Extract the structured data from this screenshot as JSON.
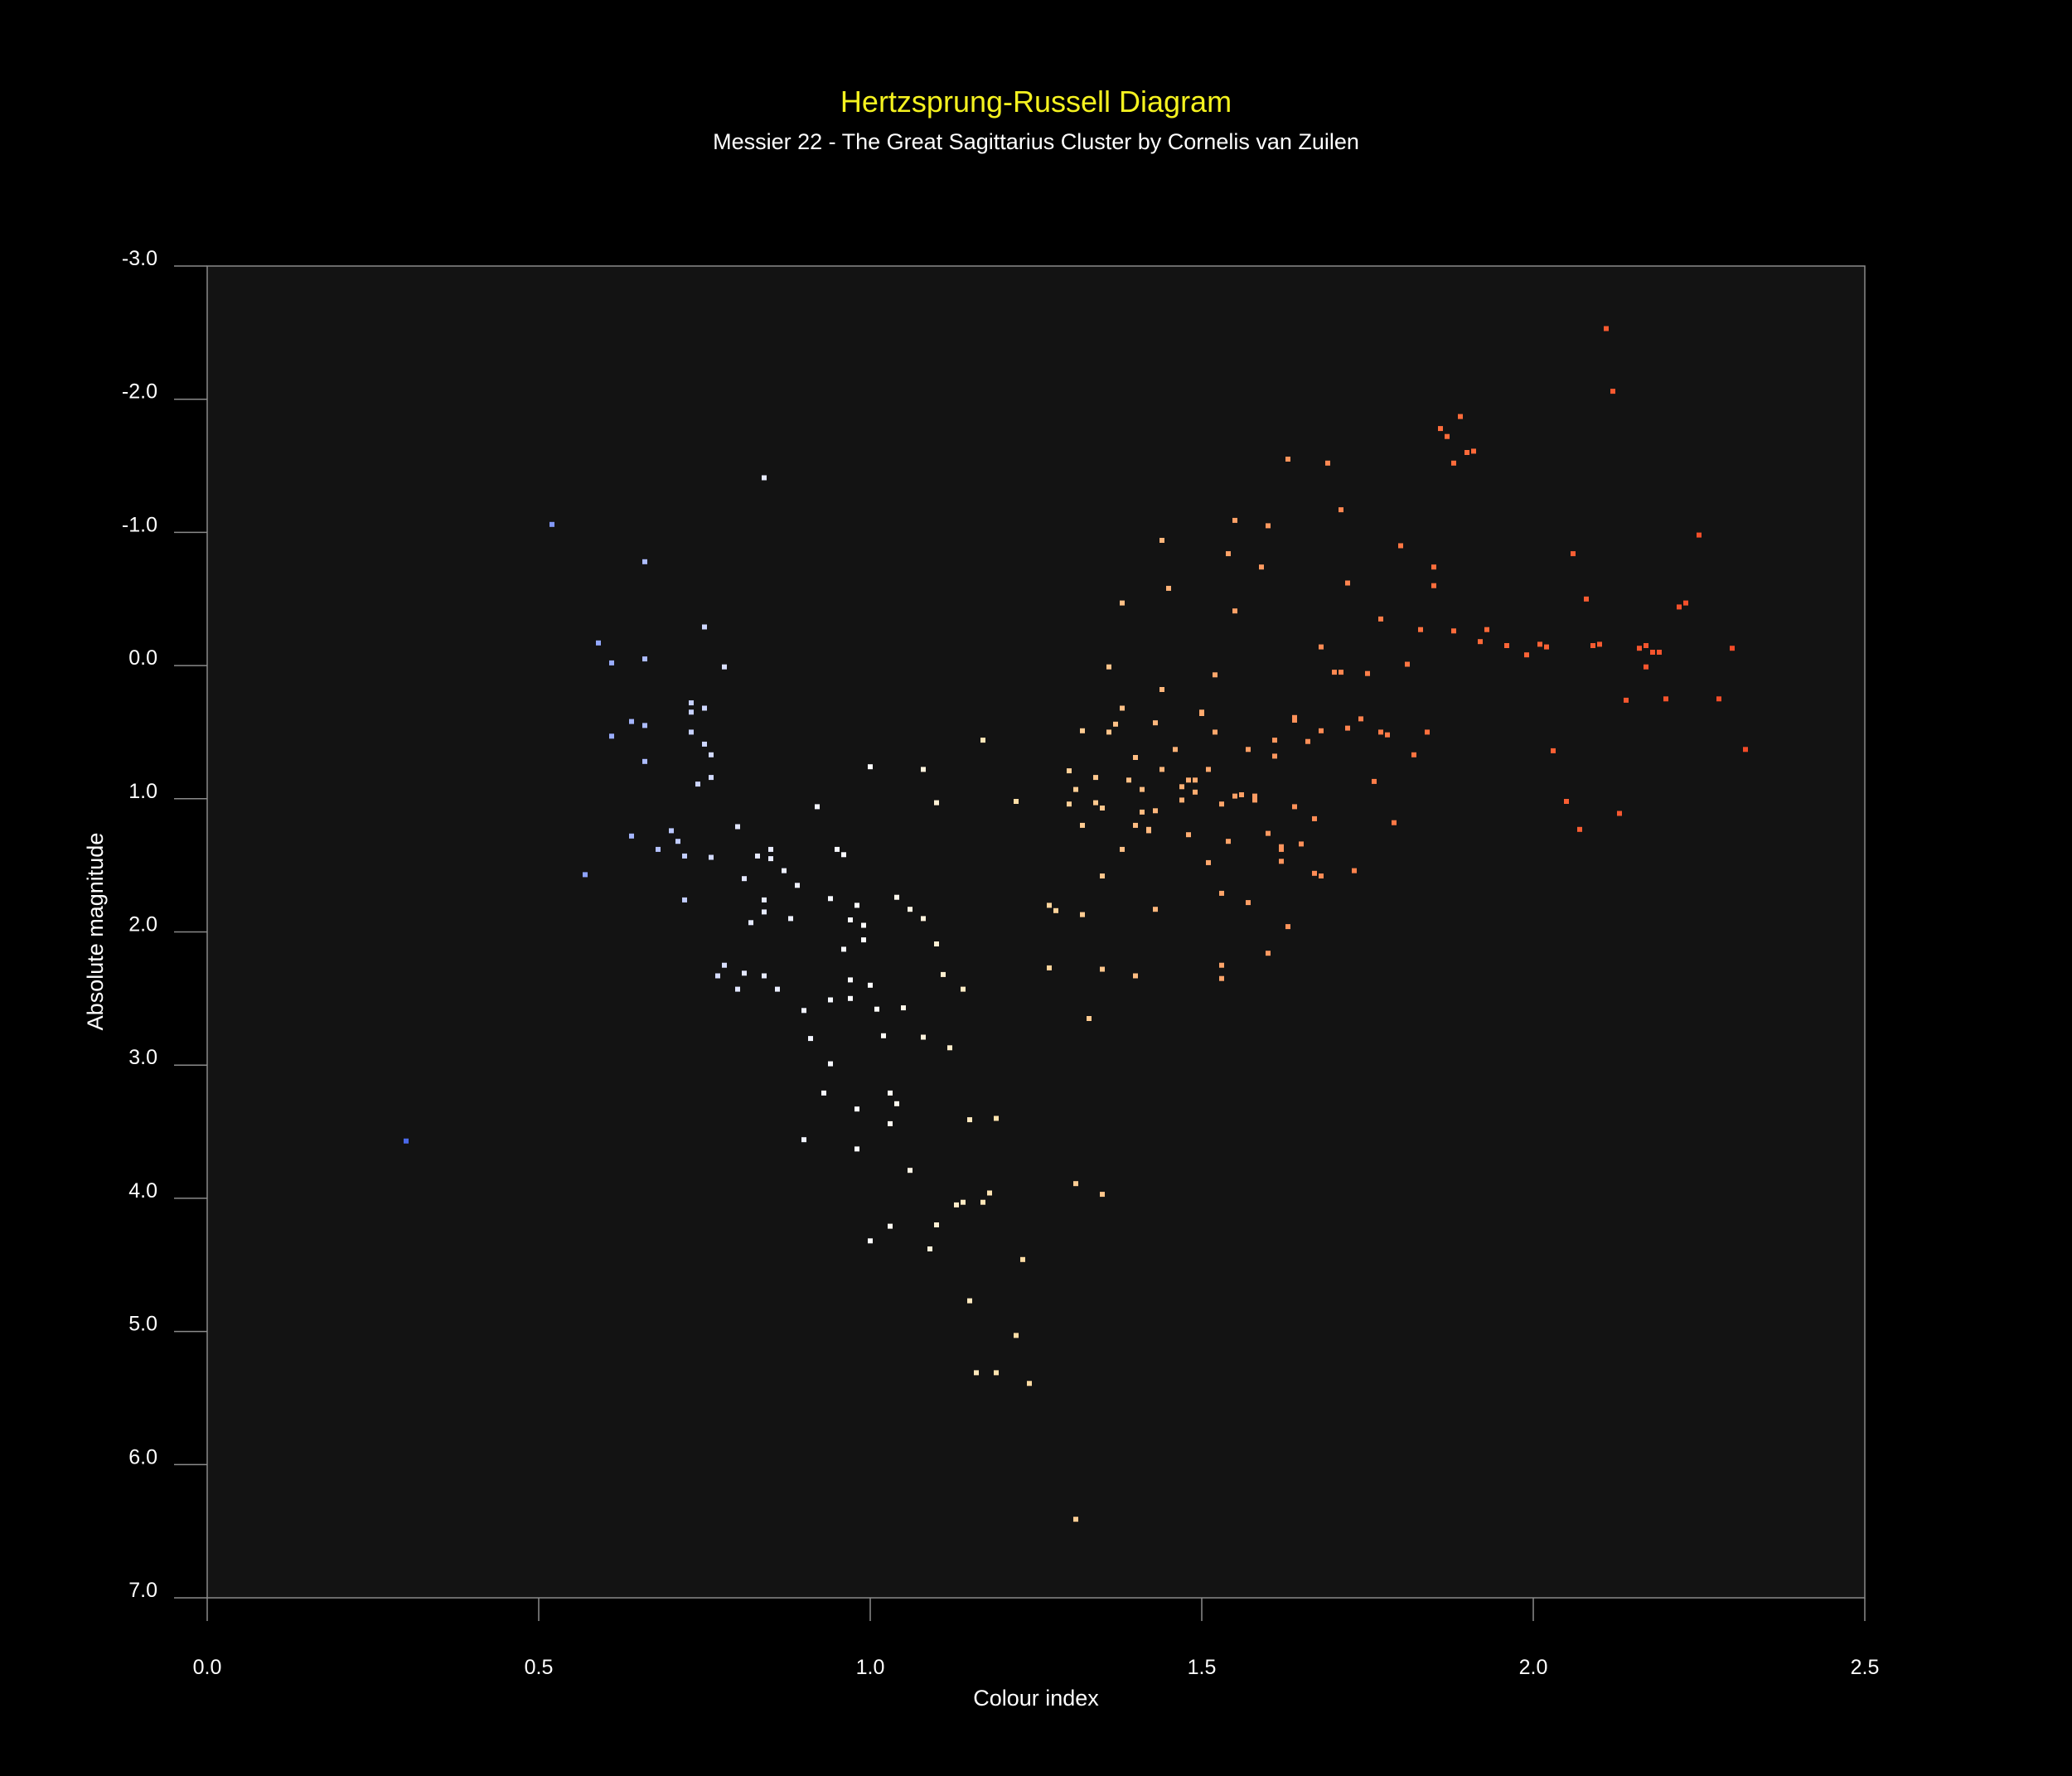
{
  "colors": {
    "background": "#000000",
    "plot_background": "#131313",
    "title": "#f5f21f",
    "text": "#ffffff",
    "axis": "#8a8a8a"
  },
  "chart_data": {
    "type": "scatter",
    "title": "Hertzsprung-Russell Diagram",
    "subtitle": "Messier 22 - The Great Sagittarius Cluster by Cornelis van Zuilen",
    "xlabel": "Colour index",
    "ylabel": "Absolute magnitude",
    "xlim": [
      0.0,
      2.5
    ],
    "ylim": [
      -3.0,
      7.0
    ],
    "y_inverted": true,
    "xticks": [
      "0.0",
      "0.5",
      "1.0",
      "1.5",
      "2.0",
      "2.5"
    ],
    "yticks": [
      "-3.0",
      "-2.0",
      "-1.0",
      "0.0",
      "1.0",
      "2.0",
      "3.0",
      "4.0",
      "5.0",
      "6.0",
      "7.0"
    ],
    "grid": false,
    "legend": "none",
    "color_by": "colour index (blue to white to orange to red)",
    "points": [
      {
        "x": 0.3,
        "y": 3.57
      },
      {
        "x": 0.52,
        "y": -1.06
      },
      {
        "x": 0.57,
        "y": 1.57
      },
      {
        "x": 0.59,
        "y": -0.17
      },
      {
        "x": 0.61,
        "y": -0.02
      },
      {
        "x": 0.61,
        "y": 0.53
      },
      {
        "x": 0.64,
        "y": 0.42
      },
      {
        "x": 0.64,
        "y": 1.28
      },
      {
        "x": 0.66,
        "y": -0.78
      },
      {
        "x": 0.66,
        "y": -0.05
      },
      {
        "x": 0.66,
        "y": 0.72
      },
      {
        "x": 0.66,
        "y": 0.45
      },
      {
        "x": 0.68,
        "y": 1.38
      },
      {
        "x": 0.7,
        "y": 1.24
      },
      {
        "x": 0.71,
        "y": 1.32
      },
      {
        "x": 0.72,
        "y": 1.76
      },
      {
        "x": 0.72,
        "y": 1.43
      },
      {
        "x": 0.73,
        "y": 0.28
      },
      {
        "x": 0.73,
        "y": 0.35
      },
      {
        "x": 0.73,
        "y": 0.5
      },
      {
        "x": 0.74,
        "y": 0.89
      },
      {
        "x": 0.75,
        "y": 0.32
      },
      {
        "x": 0.75,
        "y": 0.59
      },
      {
        "x": 0.75,
        "y": -0.29
      },
      {
        "x": 0.76,
        "y": 0.67
      },
      {
        "x": 0.76,
        "y": 0.84
      },
      {
        "x": 0.76,
        "y": 1.44
      },
      {
        "x": 0.77,
        "y": 2.33
      },
      {
        "x": 0.78,
        "y": 0.01
      },
      {
        "x": 0.78,
        "y": 2.25
      },
      {
        "x": 0.8,
        "y": 1.21
      },
      {
        "x": 0.8,
        "y": 2.43
      },
      {
        "x": 0.81,
        "y": 1.6
      },
      {
        "x": 0.81,
        "y": 2.31
      },
      {
        "x": 0.82,
        "y": 1.93
      },
      {
        "x": 0.83,
        "y": 1.43
      },
      {
        "x": 0.84,
        "y": 1.76
      },
      {
        "x": 0.84,
        "y": 1.85
      },
      {
        "x": 0.84,
        "y": 2.33
      },
      {
        "x": 0.84,
        "y": -1.41
      },
      {
        "x": 0.85,
        "y": 1.38
      },
      {
        "x": 0.85,
        "y": 1.45
      },
      {
        "x": 0.86,
        "y": 2.43
      },
      {
        "x": 0.87,
        "y": 1.54
      },
      {
        "x": 0.88,
        "y": 1.9
      },
      {
        "x": 0.89,
        "y": 1.65
      },
      {
        "x": 0.9,
        "y": 2.59
      },
      {
        "x": 0.9,
        "y": 3.56
      },
      {
        "x": 0.91,
        "y": 2.8
      },
      {
        "x": 0.92,
        "y": 1.06
      },
      {
        "x": 0.93,
        "y": 3.21
      },
      {
        "x": 0.94,
        "y": 2.99
      },
      {
        "x": 0.94,
        "y": 1.75
      },
      {
        "x": 0.94,
        "y": 2.51
      },
      {
        "x": 0.95,
        "y": 1.38
      },
      {
        "x": 0.96,
        "y": 1.42
      },
      {
        "x": 0.96,
        "y": 2.13
      },
      {
        "x": 0.97,
        "y": 2.36
      },
      {
        "x": 0.97,
        "y": 2.5
      },
      {
        "x": 0.97,
        "y": 1.91
      },
      {
        "x": 0.98,
        "y": 3.33
      },
      {
        "x": 0.98,
        "y": 1.8
      },
      {
        "x": 0.98,
        "y": 3.63
      },
      {
        "x": 0.99,
        "y": 1.95
      },
      {
        "x": 0.99,
        "y": 2.06
      },
      {
        "x": 1.0,
        "y": 0.76
      },
      {
        "x": 1.0,
        "y": 2.4
      },
      {
        "x": 1.0,
        "y": 4.32
      },
      {
        "x": 1.01,
        "y": 2.58
      },
      {
        "x": 1.02,
        "y": 2.78
      },
      {
        "x": 1.03,
        "y": 3.44
      },
      {
        "x": 1.03,
        "y": 4.21
      },
      {
        "x": 1.03,
        "y": 3.21
      },
      {
        "x": 1.04,
        "y": 3.29
      },
      {
        "x": 1.04,
        "y": 1.74
      },
      {
        "x": 1.05,
        "y": 2.57
      },
      {
        "x": 1.06,
        "y": 1.83
      },
      {
        "x": 1.06,
        "y": 3.79
      },
      {
        "x": 1.08,
        "y": 0.78
      },
      {
        "x": 1.08,
        "y": 1.9
      },
      {
        "x": 1.08,
        "y": 2.79
      },
      {
        "x": 1.09,
        "y": 4.38
      },
      {
        "x": 1.1,
        "y": 2.09
      },
      {
        "x": 1.1,
        "y": 4.2
      },
      {
        "x": 1.1,
        "y": 1.03
      },
      {
        "x": 1.11,
        "y": 2.32
      },
      {
        "x": 1.12,
        "y": 2.87
      },
      {
        "x": 1.13,
        "y": 4.05
      },
      {
        "x": 1.14,
        "y": 4.03
      },
      {
        "x": 1.14,
        "y": 2.43
      },
      {
        "x": 1.15,
        "y": 3.41
      },
      {
        "x": 1.15,
        "y": 4.77
      },
      {
        "x": 1.16,
        "y": 5.31
      },
      {
        "x": 1.17,
        "y": 0.56
      },
      {
        "x": 1.17,
        "y": 4.03
      },
      {
        "x": 1.18,
        "y": 3.96
      },
      {
        "x": 1.19,
        "y": 3.4
      },
      {
        "x": 1.19,
        "y": 5.31
      },
      {
        "x": 1.22,
        "y": 1.02
      },
      {
        "x": 1.22,
        "y": 5.03
      },
      {
        "x": 1.23,
        "y": 4.46
      },
      {
        "x": 1.24,
        "y": 5.39
      },
      {
        "x": 1.27,
        "y": 2.27
      },
      {
        "x": 1.27,
        "y": 1.8
      },
      {
        "x": 1.28,
        "y": 1.84
      },
      {
        "x": 1.3,
        "y": 0.79
      },
      {
        "x": 1.3,
        "y": 1.04
      },
      {
        "x": 1.31,
        "y": 3.89
      },
      {
        "x": 1.31,
        "y": 0.93
      },
      {
        "x": 1.31,
        "y": 6.41
      },
      {
        "x": 1.32,
        "y": 0.49
      },
      {
        "x": 1.32,
        "y": 1.2
      },
      {
        "x": 1.32,
        "y": 1.87
      },
      {
        "x": 1.33,
        "y": 2.65
      },
      {
        "x": 1.34,
        "y": 1.03
      },
      {
        "x": 1.34,
        "y": 0.84
      },
      {
        "x": 1.35,
        "y": 1.07
      },
      {
        "x": 1.35,
        "y": 1.58
      },
      {
        "x": 1.35,
        "y": 2.28
      },
      {
        "x": 1.35,
        "y": 3.97
      },
      {
        "x": 1.36,
        "y": 0.5
      },
      {
        "x": 1.36,
        "y": 0.01
      },
      {
        "x": 1.37,
        "y": 0.44
      },
      {
        "x": 1.38,
        "y": 0.32
      },
      {
        "x": 1.38,
        "y": 1.38
      },
      {
        "x": 1.38,
        "y": -0.47
      },
      {
        "x": 1.39,
        "y": 0.86
      },
      {
        "x": 1.4,
        "y": 1.2
      },
      {
        "x": 1.4,
        "y": 0.69
      },
      {
        "x": 1.4,
        "y": 2.33
      },
      {
        "x": 1.41,
        "y": 0.93
      },
      {
        "x": 1.41,
        "y": 1.1
      },
      {
        "x": 1.42,
        "y": 1.24
      },
      {
        "x": 1.42,
        "y": 1.23
      },
      {
        "x": 1.43,
        "y": 0.43
      },
      {
        "x": 1.43,
        "y": 1.09
      },
      {
        "x": 1.43,
        "y": 1.83
      },
      {
        "x": 1.44,
        "y": -0.94
      },
      {
        "x": 1.44,
        "y": 0.78
      },
      {
        "x": 1.44,
        "y": 0.18
      },
      {
        "x": 1.45,
        "y": -0.58
      },
      {
        "x": 1.46,
        "y": 0.63
      },
      {
        "x": 1.47,
        "y": 0.91
      },
      {
        "x": 1.47,
        "y": 1.01
      },
      {
        "x": 1.48,
        "y": 0.86
      },
      {
        "x": 1.48,
        "y": 1.27
      },
      {
        "x": 1.49,
        "y": 0.86
      },
      {
        "x": 1.49,
        "y": 0.95
      },
      {
        "x": 1.5,
        "y": 0.35
      },
      {
        "x": 1.5,
        "y": 0.36
      },
      {
        "x": 1.51,
        "y": 1.48
      },
      {
        "x": 1.51,
        "y": 0.78
      },
      {
        "x": 1.52,
        "y": 0.5
      },
      {
        "x": 1.52,
        "y": 0.07
      },
      {
        "x": 1.53,
        "y": 2.25
      },
      {
        "x": 1.53,
        "y": 2.35
      },
      {
        "x": 1.53,
        "y": 1.04
      },
      {
        "x": 1.53,
        "y": 1.71
      },
      {
        "x": 1.54,
        "y": 1.32
      },
      {
        "x": 1.54,
        "y": -0.84
      },
      {
        "x": 1.55,
        "y": -1.09
      },
      {
        "x": 1.55,
        "y": -0.41
      },
      {
        "x": 1.55,
        "y": 0.98
      },
      {
        "x": 1.56,
        "y": 0.97
      },
      {
        "x": 1.57,
        "y": 0.63
      },
      {
        "x": 1.57,
        "y": 1.78
      },
      {
        "x": 1.58,
        "y": 0.98
      },
      {
        "x": 1.58,
        "y": 1.01
      },
      {
        "x": 1.59,
        "y": -0.74
      },
      {
        "x": 1.6,
        "y": -1.05
      },
      {
        "x": 1.6,
        "y": 1.26
      },
      {
        "x": 1.6,
        "y": 2.16
      },
      {
        "x": 1.61,
        "y": 0.56
      },
      {
        "x": 1.61,
        "y": 0.68
      },
      {
        "x": 1.62,
        "y": 1.47
      },
      {
        "x": 1.62,
        "y": 1.38
      },
      {
        "x": 1.62,
        "y": 1.36
      },
      {
        "x": 1.63,
        "y": 1.96
      },
      {
        "x": 1.63,
        "y": -1.55
      },
      {
        "x": 1.64,
        "y": 0.39
      },
      {
        "x": 1.64,
        "y": 0.41
      },
      {
        "x": 1.64,
        "y": 1.06
      },
      {
        "x": 1.65,
        "y": 1.34
      },
      {
        "x": 1.66,
        "y": 0.57
      },
      {
        "x": 1.67,
        "y": 1.56
      },
      {
        "x": 1.67,
        "y": 1.15
      },
      {
        "x": 1.68,
        "y": -0.14
      },
      {
        "x": 1.68,
        "y": 1.58
      },
      {
        "x": 1.68,
        "y": 0.49
      },
      {
        "x": 1.69,
        "y": -1.52
      },
      {
        "x": 1.7,
        "y": 0.05
      },
      {
        "x": 1.71,
        "y": 0.05
      },
      {
        "x": 1.71,
        "y": -1.17
      },
      {
        "x": 1.72,
        "y": 0.47
      },
      {
        "x": 1.72,
        "y": -0.62
      },
      {
        "x": 1.73,
        "y": 1.54
      },
      {
        "x": 1.74,
        "y": 0.4
      },
      {
        "x": 1.75,
        "y": 0.06
      },
      {
        "x": 1.76,
        "y": 0.87
      },
      {
        "x": 1.77,
        "y": -0.35
      },
      {
        "x": 1.77,
        "y": 0.5
      },
      {
        "x": 1.78,
        "y": 0.52
      },
      {
        "x": 1.79,
        "y": 1.18
      },
      {
        "x": 1.8,
        "y": -0.9
      },
      {
        "x": 1.81,
        "y": -0.01
      },
      {
        "x": 1.82,
        "y": 0.67
      },
      {
        "x": 1.83,
        "y": -0.27
      },
      {
        "x": 1.84,
        "y": 0.5
      },
      {
        "x": 1.85,
        "y": -0.74
      },
      {
        "x": 1.85,
        "y": -0.6
      },
      {
        "x": 1.86,
        "y": -1.78
      },
      {
        "x": 1.87,
        "y": -1.72
      },
      {
        "x": 1.88,
        "y": -1.52
      },
      {
        "x": 1.88,
        "y": -0.26
      },
      {
        "x": 1.89,
        "y": -1.87
      },
      {
        "x": 1.9,
        "y": -1.6
      },
      {
        "x": 1.91,
        "y": -1.61
      },
      {
        "x": 1.92,
        "y": -0.18
      },
      {
        "x": 1.93,
        "y": -0.27
      },
      {
        "x": 1.96,
        "y": -0.15
      },
      {
        "x": 1.99,
        "y": -0.08
      },
      {
        "x": 2.01,
        "y": -0.16
      },
      {
        "x": 2.02,
        "y": -0.14
      },
      {
        "x": 2.03,
        "y": 0.64
      },
      {
        "x": 2.05,
        "y": 1.02
      },
      {
        "x": 2.06,
        "y": -0.84
      },
      {
        "x": 2.07,
        "y": 1.23
      },
      {
        "x": 2.08,
        "y": -0.5
      },
      {
        "x": 2.09,
        "y": -0.15
      },
      {
        "x": 2.1,
        "y": -0.16
      },
      {
        "x": 2.11,
        "y": -2.53
      },
      {
        "x": 2.12,
        "y": -2.06
      },
      {
        "x": 2.13,
        "y": 1.11
      },
      {
        "x": 2.14,
        "y": 0.26
      },
      {
        "x": 2.16,
        "y": -0.13
      },
      {
        "x": 2.17,
        "y": 0.01
      },
      {
        "x": 2.17,
        "y": -0.15
      },
      {
        "x": 2.18,
        "y": -0.1
      },
      {
        "x": 2.19,
        "y": -0.1
      },
      {
        "x": 2.2,
        "y": 0.25
      },
      {
        "x": 2.22,
        "y": -0.44
      },
      {
        "x": 2.23,
        "y": -0.47
      },
      {
        "x": 2.25,
        "y": -0.98
      },
      {
        "x": 2.28,
        "y": 0.25
      },
      {
        "x": 2.3,
        "y": -0.13
      },
      {
        "x": 2.32,
        "y": 0.63
      }
    ]
  }
}
